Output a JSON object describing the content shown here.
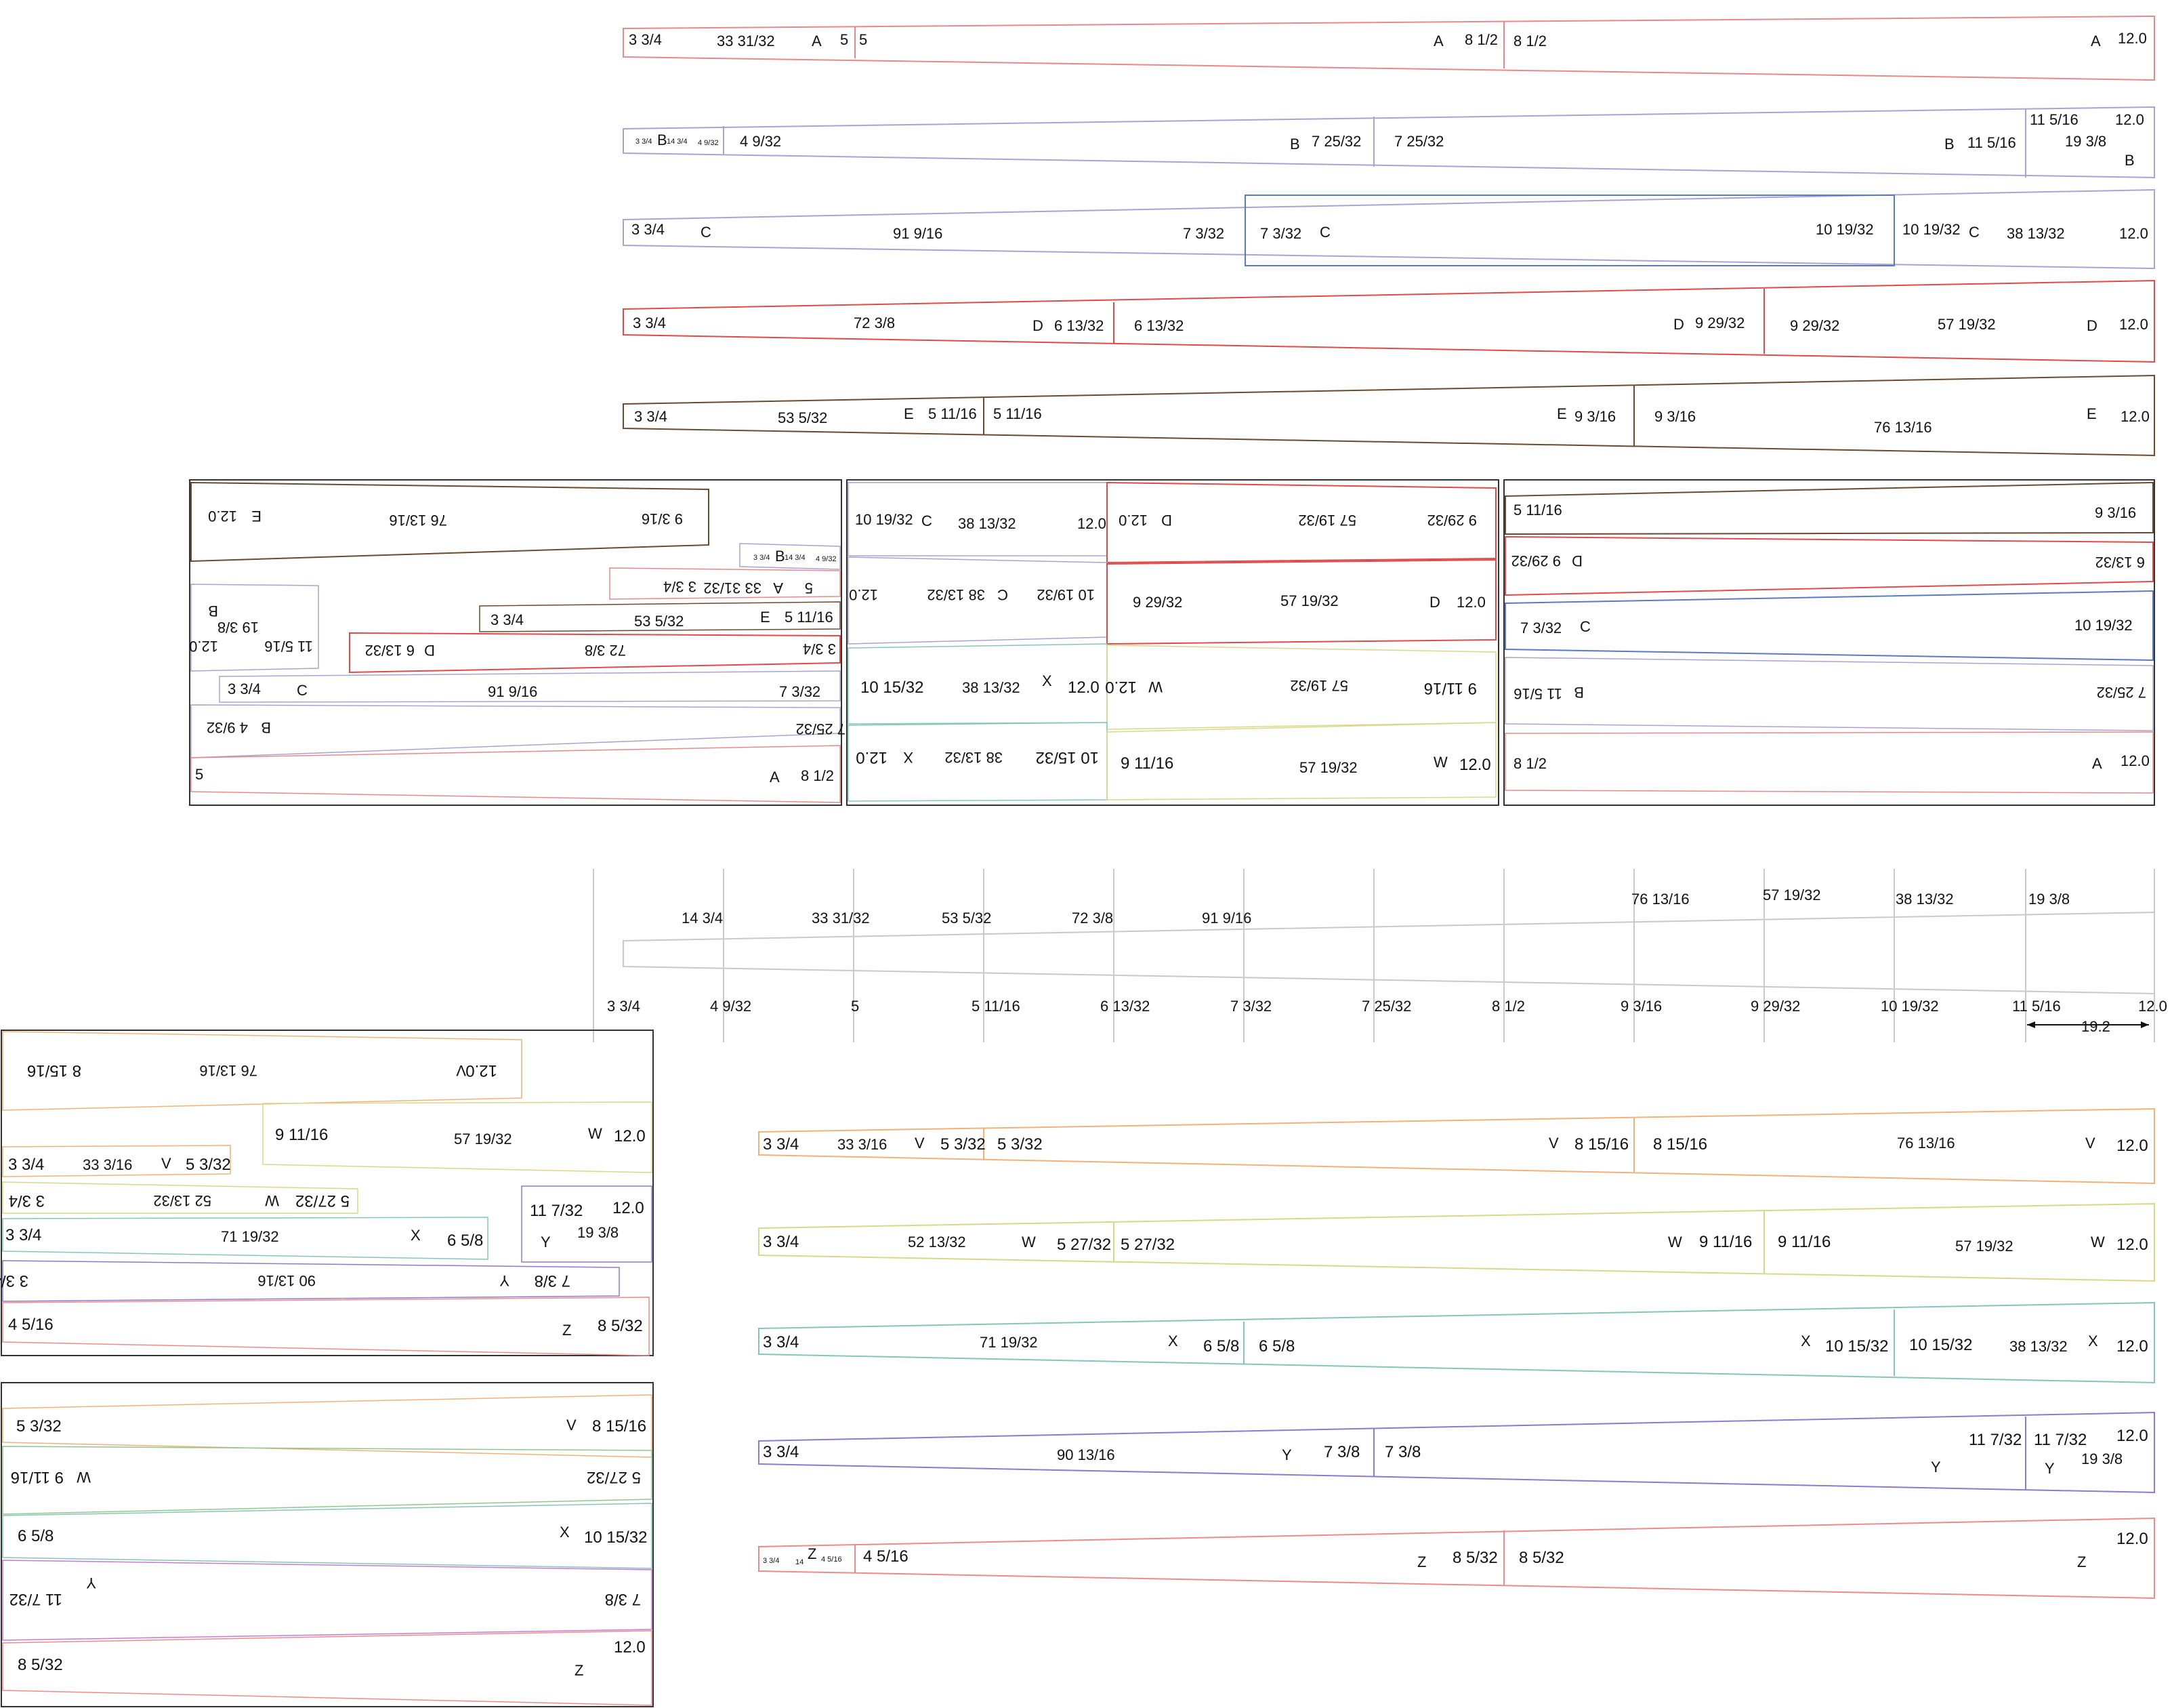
{
  "common": {
    "start_width": "3 3/4",
    "end_width": "12.0"
  },
  "colors": {
    "A": "#e8888a",
    "B": "#a9a3d4",
    "C": "#5b79c4",
    "D": "#e14a4a",
    "E": "#6b4a2f",
    "V": "#f0b27a",
    "W": "#d8d88a",
    "X": "#86c5b8",
    "Y": "#8d7ad1",
    "Z": "#ef8a8a",
    "frame": "#333333",
    "ruler": "#c9c9c9"
  },
  "strips_top": {
    "A": {
      "letter": "A",
      "w1": "5",
      "w2": "8 1/2",
      "len1": "33 31/32"
    },
    "B": {
      "letter": "B",
      "w1": "4 9/32",
      "w2": "7 25/32",
      "w3": "11 5/16",
      "len0": "14 3/4",
      "len2": "19 3/8"
    },
    "C": {
      "letter": "C",
      "w1": "7 3/32",
      "w2": "10 19/32",
      "len1": "91 9/16",
      "len2": "38 13/32"
    },
    "D": {
      "letter": "D",
      "w1": "6 13/32",
      "w2": "9 29/32",
      "len1": "72 3/8",
      "len2": "57 19/32"
    },
    "E": {
      "letter": "E",
      "w1": "5 11/16",
      "w2": "9 3/16",
      "len1": "53 5/32",
      "len2": "76 13/16"
    }
  },
  "ruler": {
    "upper_labels": [
      "14 3/4",
      "33 31/32",
      "53 5/32",
      "72 3/8",
      "91 9/16",
      "76 13/16",
      "57 19/32",
      "38 13/32",
      "19 3/8"
    ],
    "lower_labels": [
      "3 3/4",
      "4 9/32",
      "5",
      "5 11/16",
      "6 13/32",
      "7 3/32",
      "7 25/32",
      "8 1/2",
      "9 3/16",
      "9 29/32",
      "10 19/32",
      "11 5/16",
      "12.0"
    ],
    "span_label": "19.2"
  },
  "strips_bottom": {
    "V": {
      "letter": "V",
      "w1": "5 3/32",
      "w2": "8 15/16",
      "len1": "33 3/16",
      "len2": "76 13/16"
    },
    "W": {
      "letter": "W",
      "w1": "5 27/32",
      "w2": "9  11/16",
      "len1": "52 13/32",
      "len2": "57 19/32"
    },
    "X": {
      "letter": "X",
      "w1": "6 5/8",
      "w2": "10 15/32",
      "len1": "71 19/32",
      "len2": "38 13/32"
    },
    "Y": {
      "letter": "Y",
      "w1": "7  3/8",
      "w2": "11 7/32",
      "len1": "90 13/16",
      "len2": "19 3/8"
    },
    "Z": {
      "letter": "Z",
      "w1": "4 5/16",
      "w2": "8 5/32",
      "len0": "14"
    }
  }
}
